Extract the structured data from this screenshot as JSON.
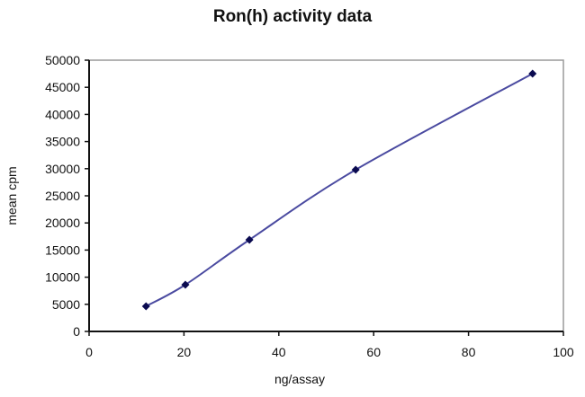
{
  "chart_data": {
    "type": "line",
    "title": "Ron(h) activity data",
    "xlabel": "ng/assay",
    "ylabel": "mean cpm",
    "xlim": [
      0,
      100
    ],
    "ylim": [
      0,
      50000
    ],
    "x_ticks": [
      0,
      20,
      40,
      60,
      80,
      100
    ],
    "y_ticks": [
      0,
      5000,
      10000,
      15000,
      20000,
      25000,
      30000,
      35000,
      40000,
      45000,
      50000
    ],
    "grid": false,
    "legend": null,
    "series": [
      {
        "name": "Ron(h)",
        "color": "#4a4aa0",
        "marker": "diamond",
        "marker_color": "#0a0a50",
        "smooth": true,
        "x": [
          12.0,
          20.3,
          33.8,
          56.2,
          93.5
        ],
        "values": [
          4640,
          8610,
          16890,
          29800,
          47520
        ]
      }
    ]
  }
}
